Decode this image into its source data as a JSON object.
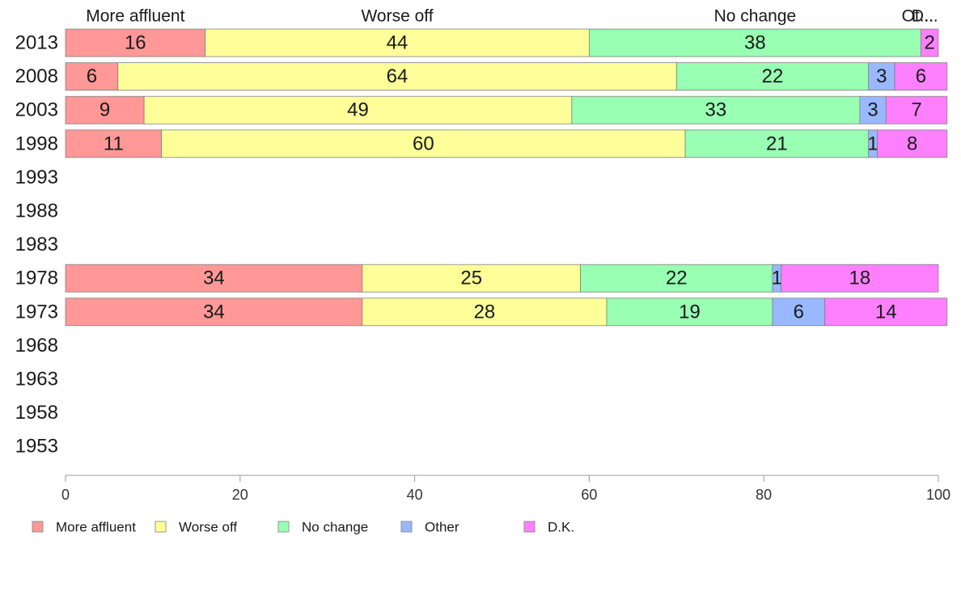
{
  "chart_data": {
    "type": "bar",
    "orientation": "horizontal",
    "stacked": true,
    "categories": [
      "2013",
      "2008",
      "2003",
      "1998",
      "1993",
      "1988",
      "1983",
      "1978",
      "1973",
      "1968",
      "1963",
      "1958",
      "1953"
    ],
    "series": [
      {
        "name": "More affluent",
        "color": "#ff9896",
        "values": [
          16,
          6,
          9,
          11,
          null,
          null,
          null,
          34,
          34,
          null,
          null,
          null,
          null
        ]
      },
      {
        "name": "Worse off",
        "color": "#ffff99",
        "values": [
          44,
          64,
          49,
          60,
          null,
          null,
          null,
          25,
          28,
          null,
          null,
          null,
          null
        ]
      },
      {
        "name": "No change",
        "color": "#98ffb3",
        "values": [
          38,
          22,
          33,
          21,
          null,
          null,
          null,
          22,
          19,
          null,
          null,
          null,
          null
        ]
      },
      {
        "name": "Other",
        "color": "#99b8ff",
        "values": [
          0,
          3,
          3,
          1,
          null,
          null,
          null,
          1,
          6,
          null,
          null,
          null,
          null
        ]
      },
      {
        "name": "D.K.",
        "color": "#ff80ff",
        "values": [
          2,
          6,
          7,
          8,
          null,
          null,
          null,
          18,
          14,
          null,
          null,
          null,
          null
        ]
      }
    ],
    "top_labels": [
      "More affluent",
      "Worse off",
      "No change",
      "Ot...",
      "D..."
    ],
    "xlim": [
      0,
      100
    ],
    "xticks": [
      0,
      20,
      40,
      60,
      80,
      100
    ],
    "grid": false,
    "legend_position": "bottom-left"
  }
}
